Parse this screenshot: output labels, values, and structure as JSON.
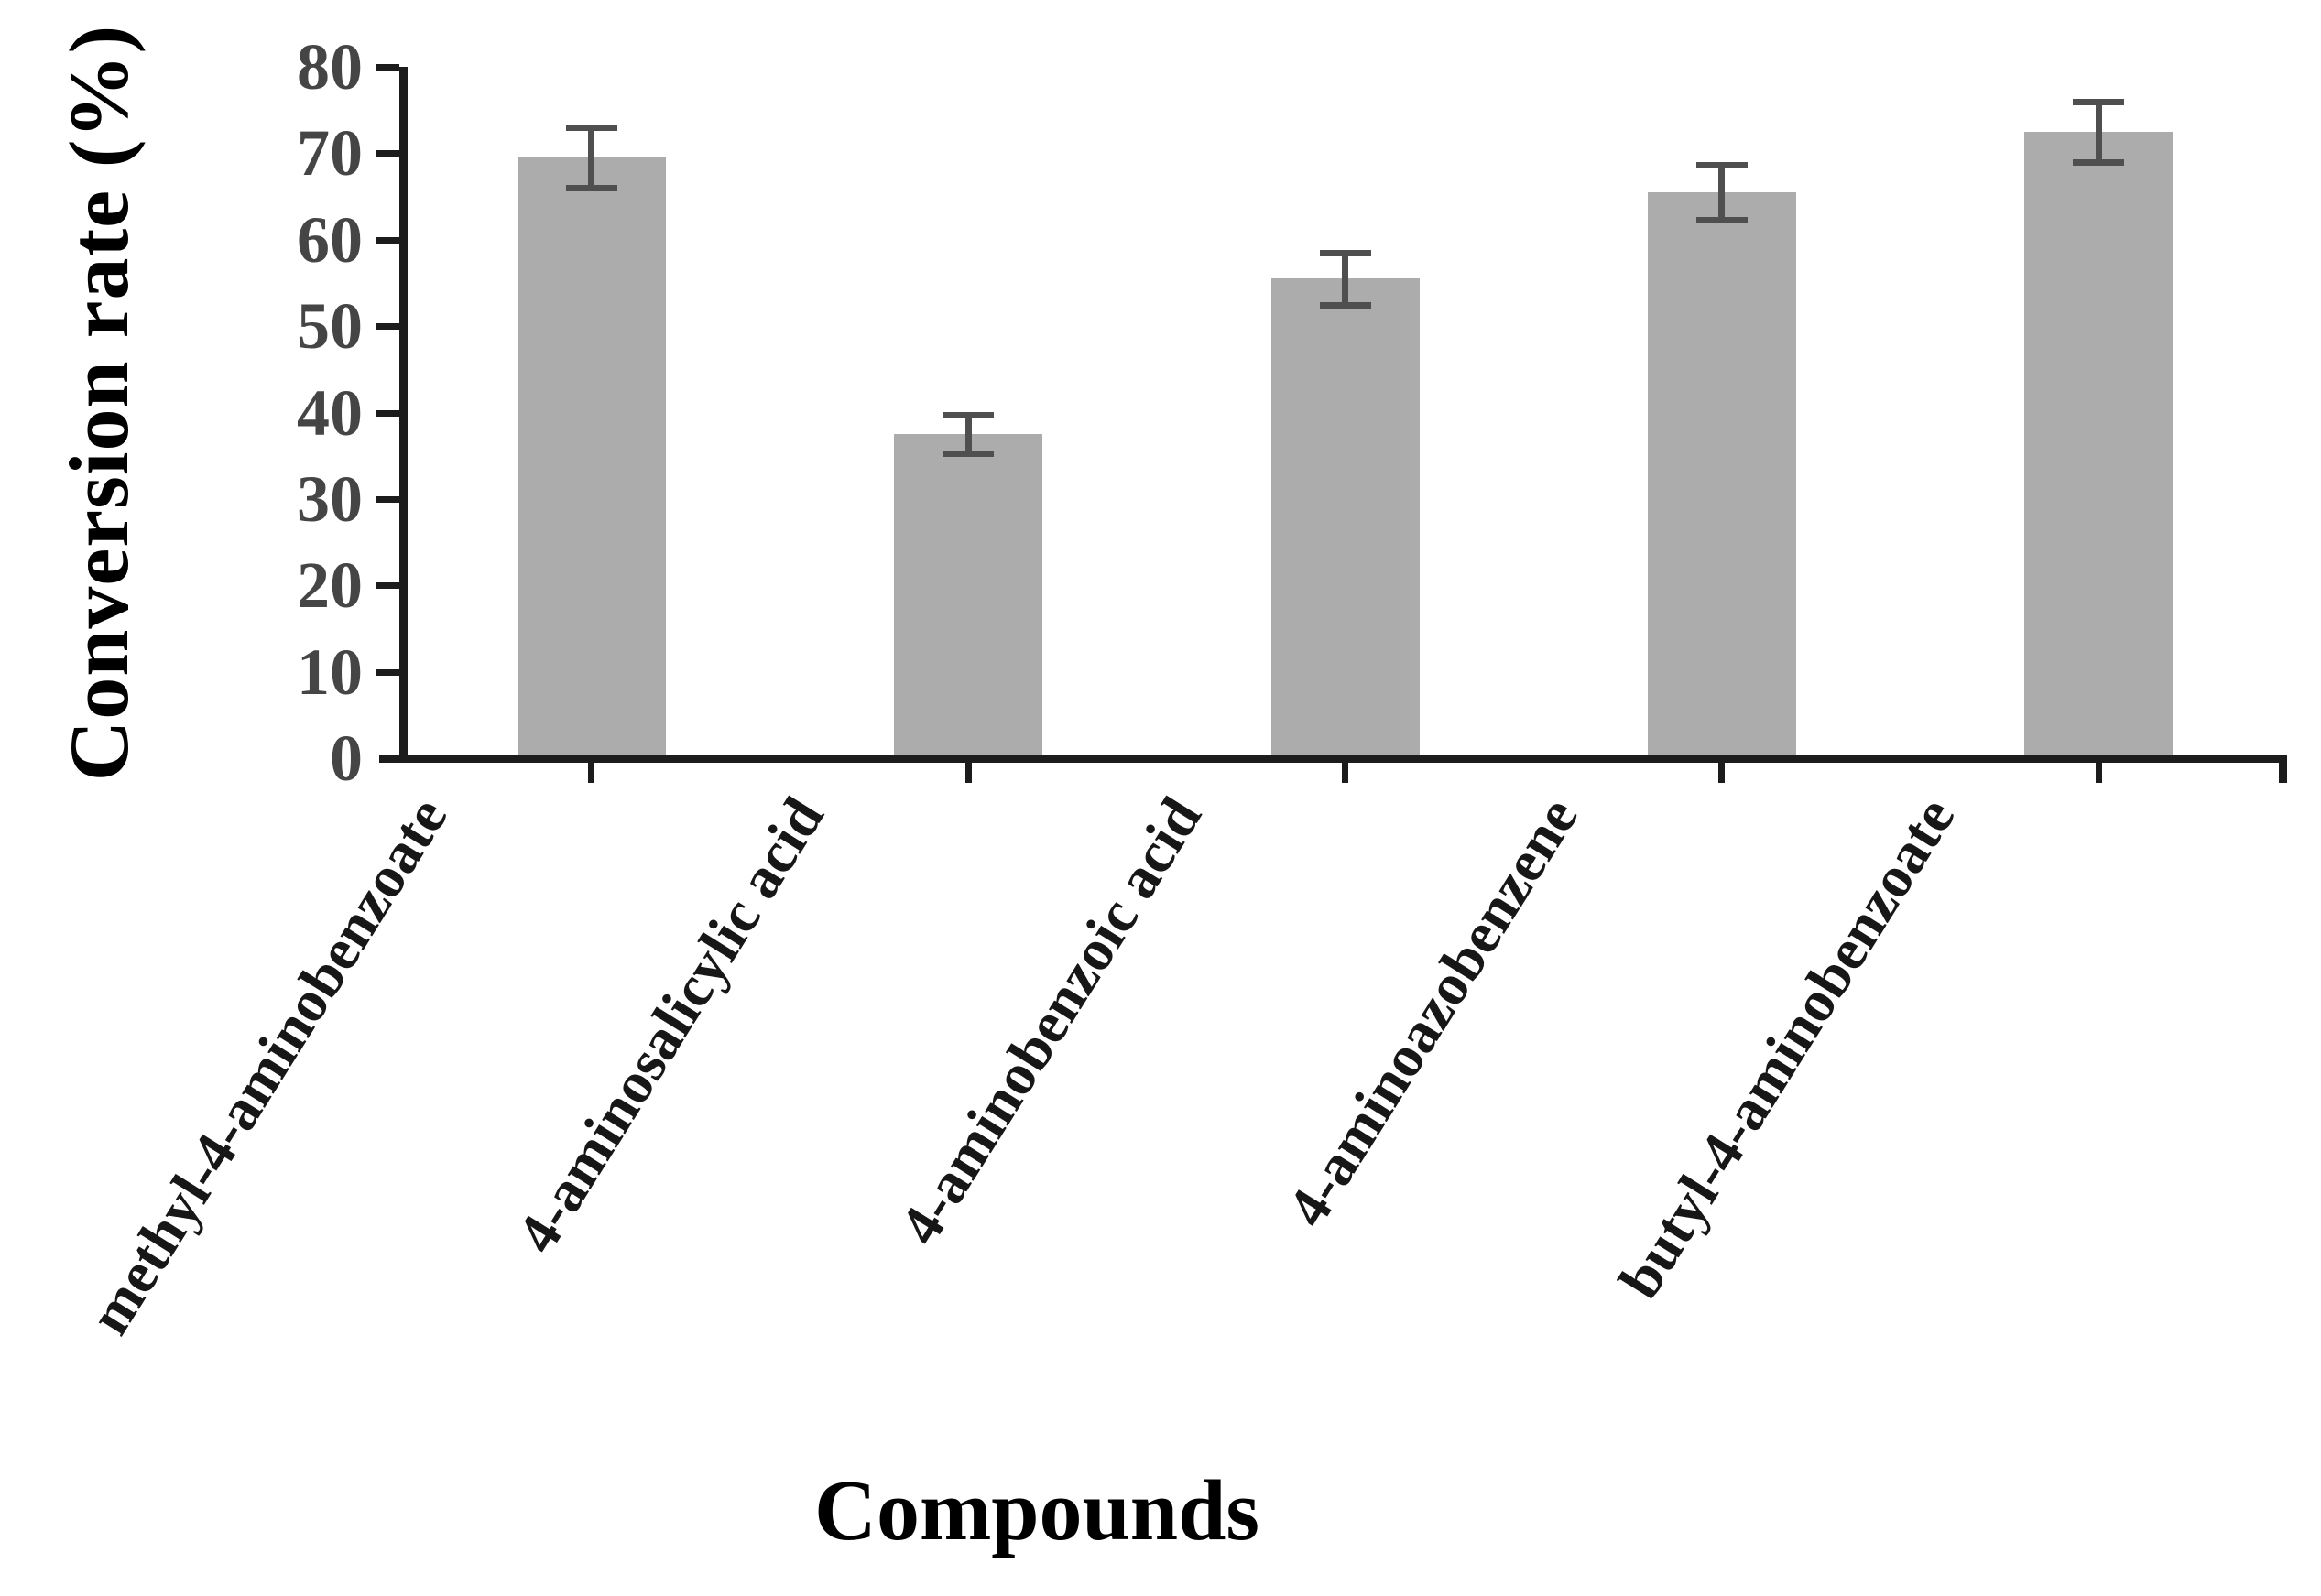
{
  "chart_data": {
    "type": "bar",
    "title": "",
    "xlabel": "Compounds",
    "ylabel": "Conversion rate (%)",
    "categories": [
      "methyl-4-aminobenzoate",
      "4-aminosalicylic acid",
      "4-aminobenzoic acid",
      "4-aminoazobenzene",
      "butyl-4-aminobenzoate"
    ],
    "values": [
      69.5,
      37.5,
      55.5,
      65.5,
      72.5
    ],
    "errors": [
      3.5,
      2.2,
      3.0,
      3.2,
      3.5
    ],
    "ylim": [
      0,
      80
    ],
    "yticks": [
      0,
      10,
      20,
      30,
      40,
      50,
      60,
      70,
      80
    ],
    "grid": false,
    "legend_position": "none",
    "bar_color": "#ACACAC",
    "error_bar_color": "#4F4F4F",
    "axis_color": "#1C1C1C",
    "tick_label_color": "#454545",
    "category_label_color": "#171717",
    "category_label_rotation_deg": 58
  }
}
